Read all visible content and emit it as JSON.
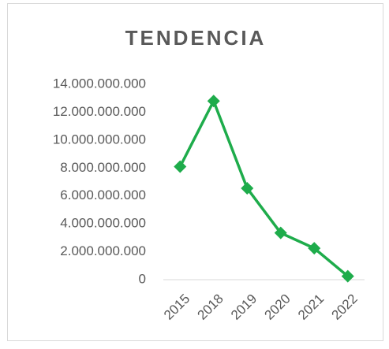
{
  "chart_data": {
    "type": "line",
    "title": "TENDENCIA",
    "categories": [
      "2015",
      "2018",
      "2019",
      "2020",
      "2021",
      "2022"
    ],
    "series": [
      {
        "name": "TENDENCIA",
        "color": "#1eac4b",
        "values": [
          8100000000,
          12800000000,
          6550000000,
          3350000000,
          2250000000,
          250000000
        ]
      }
    ],
    "ylim": [
      0,
      14000000000
    ],
    "yticks": [
      0,
      {
        "value": 2000000000,
        "label": "2.000.000.000"
      },
      {
        "value": 4000000000,
        "label": "4.000.000.000"
      },
      {
        "value": 6000000000,
        "label": "6.000.000.000"
      },
      {
        "value": 8000000000,
        "label": "8.000.000.000"
      },
      {
        "value": 10000000000,
        "label": "10.000.000.000"
      },
      {
        "value": 12000000000,
        "label": "12.000.000.000"
      },
      {
        "value": 14000000000,
        "label": "14.000.000.000"
      }
    ],
    "grid": false
  }
}
